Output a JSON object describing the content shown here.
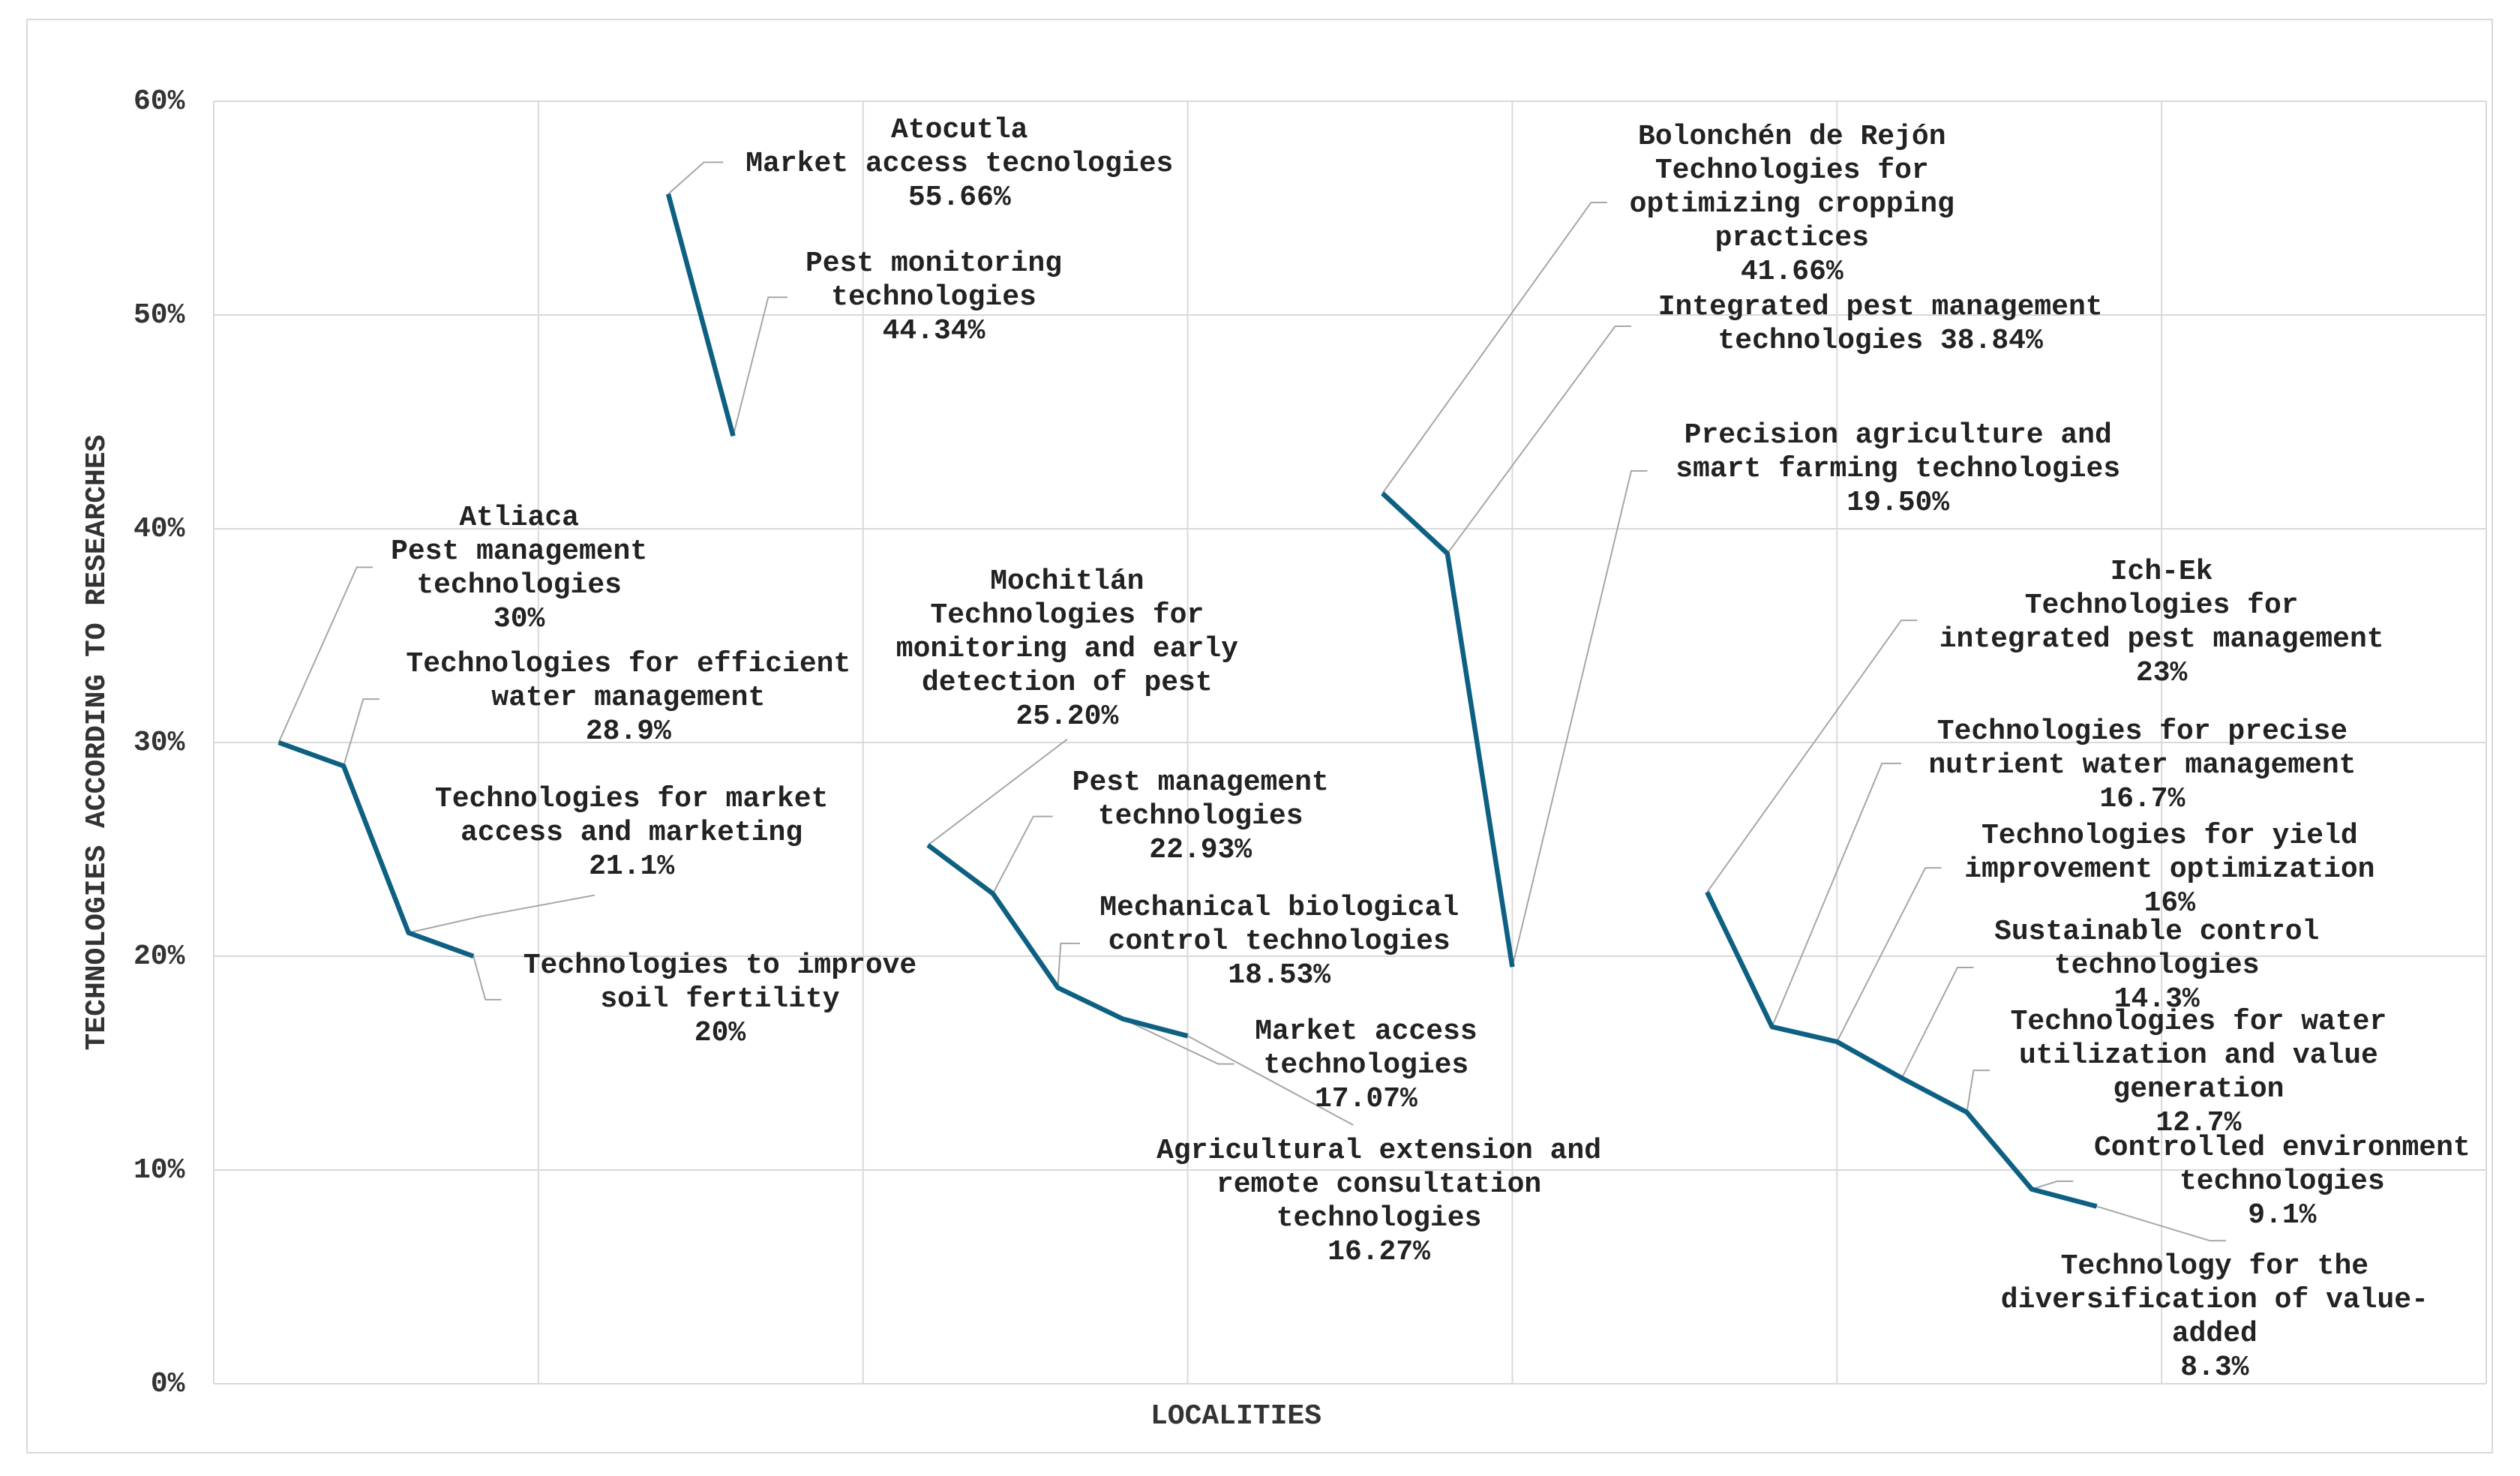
{
  "chart_data": {
    "type": "line",
    "y_label": "TECHNOLOGIES ACCORDING TO RESEARCHES",
    "x_label": "LOCALITIES",
    "categories": [
      null,
      null,
      null,
      null,
      null,
      null,
      null,
      null,
      null,
      null,
      null,
      null,
      null,
      null,
      null,
      null,
      null,
      null,
      null,
      null,
      null,
      null,
      null,
      null,
      null,
      null,
      null,
      null,
      null,
      null,
      null,
      null,
      null,
      null,
      null,
      null
    ],
    "ylim": [
      0,
      60
    ],
    "yticks": [
      {
        "value": 0,
        "label": "0%"
      },
      {
        "value": 10,
        "label": "10%"
      },
      {
        "value": 20,
        "label": "20%"
      },
      {
        "value": 30,
        "label": "30%"
      },
      {
        "value": 40,
        "label": "40%"
      },
      {
        "value": 50,
        "label": "50%"
      },
      {
        "value": 60,
        "label": "60%"
      }
    ],
    "grid": true,
    "series": [
      {
        "name": "Atliaca",
        "color": "#0e6083",
        "values": [
          null,
          30,
          28.9,
          21.1,
          20,
          null,
          null,
          null,
          null,
          null,
          null,
          null,
          null,
          null,
          null,
          null,
          null,
          null,
          null,
          null,
          null,
          null,
          null,
          null,
          null,
          null,
          null,
          null,
          null,
          null,
          null,
          null,
          null,
          null,
          null,
          null
        ],
        "labels": [
          null,
          "Pest management technologies",
          "Technologies for efficient water management",
          "Technologies for market access and marketing",
          "Technologies to improve soil fertility",
          null,
          null,
          null,
          null,
          null,
          null,
          null,
          null,
          null,
          null,
          null,
          null,
          null,
          null,
          null,
          null,
          null,
          null,
          null,
          null,
          null,
          null,
          null,
          null,
          null,
          null,
          null,
          null,
          null,
          null,
          null
        ],
        "value_labels": [
          null,
          "30%",
          "28.9%",
          "21.1%",
          "20%",
          null,
          null,
          null,
          null,
          null,
          null,
          null,
          null,
          null,
          null,
          null,
          null,
          null,
          null,
          null,
          null,
          null,
          null,
          null,
          null,
          null,
          null,
          null,
          null,
          null,
          null,
          null,
          null,
          null,
          null,
          null
        ]
      },
      {
        "name": "Atocutla",
        "color": "#0e6083",
        "values": [
          null,
          null,
          null,
          null,
          null,
          null,
          null,
          55.66,
          44.34,
          null,
          null,
          null,
          null,
          null,
          null,
          null,
          null,
          null,
          null,
          null,
          null,
          null,
          null,
          null,
          null,
          null,
          null,
          null,
          null,
          null,
          null,
          null,
          null,
          null,
          null,
          null
        ],
        "labels": [
          null,
          null,
          null,
          null,
          null,
          null,
          null,
          "Market access tecnologies",
          "Pest monitoring technologies",
          null,
          null,
          null,
          null,
          null,
          null,
          null,
          null,
          null,
          null,
          null,
          null,
          null,
          null,
          null,
          null,
          null,
          null,
          null,
          null,
          null,
          null,
          null,
          null,
          null,
          null,
          null
        ],
        "value_labels": [
          null,
          null,
          null,
          null,
          null,
          null,
          null,
          "55.66%",
          "44.34%",
          null,
          null,
          null,
          null,
          null,
          null,
          null,
          null,
          null,
          null,
          null,
          null,
          null,
          null,
          null,
          null,
          null,
          null,
          null,
          null,
          null,
          null,
          null,
          null,
          null,
          null,
          null
        ]
      },
      {
        "name": "Mochitlán",
        "color": "#0e6083",
        "values": [
          null,
          null,
          null,
          null,
          null,
          null,
          null,
          null,
          null,
          null,
          null,
          25.2,
          22.93,
          18.53,
          17.07,
          16.27,
          null,
          null,
          null,
          null,
          null,
          null,
          null,
          null,
          null,
          null,
          null,
          null,
          null,
          null,
          null,
          null,
          null,
          null,
          null,
          null
        ],
        "labels": [
          null,
          null,
          null,
          null,
          null,
          null,
          null,
          null,
          null,
          null,
          null,
          "Technologies for monitoring and early detection of pest",
          "Pest management technologies",
          "Mechanical biological control technologies",
          "Market access technologies",
          "Agricultural extension and remote consultation technologies",
          null,
          null,
          null,
          null,
          null,
          null,
          null,
          null,
          null,
          null,
          null,
          null,
          null,
          null,
          null,
          null,
          null,
          null,
          null,
          null
        ],
        "value_labels": [
          null,
          null,
          null,
          null,
          null,
          null,
          null,
          null,
          null,
          null,
          null,
          "25.20%",
          "22.93%",
          "18.53%",
          "17.07%",
          "16.27%",
          null,
          null,
          null,
          null,
          null,
          null,
          null,
          null,
          null,
          null,
          null,
          null,
          null,
          null,
          null,
          null,
          null,
          null,
          null,
          null
        ]
      },
      {
        "name": "Bolonchén de Rejón",
        "color": "#0e6083",
        "values": [
          null,
          null,
          null,
          null,
          null,
          null,
          null,
          null,
          null,
          null,
          null,
          null,
          null,
          null,
          null,
          null,
          null,
          null,
          41.66,
          38.84,
          19.5,
          null,
          null,
          null,
          null,
          null,
          null,
          null,
          null,
          null,
          null,
          null,
          null,
          null,
          null,
          null
        ],
        "labels": [
          null,
          null,
          null,
          null,
          null,
          null,
          null,
          null,
          null,
          null,
          null,
          null,
          null,
          null,
          null,
          null,
          null,
          null,
          "Technologies for optimizing cropping practices",
          "Integrated pest management technologies",
          "Precision agriculture and smart farming technologies",
          null,
          null,
          null,
          null,
          null,
          null,
          null,
          null,
          null,
          null,
          null,
          null,
          null,
          null,
          null
        ],
        "value_labels": [
          null,
          null,
          null,
          null,
          null,
          null,
          null,
          null,
          null,
          null,
          null,
          null,
          null,
          null,
          null,
          null,
          null,
          null,
          "41.66%",
          "38.84%",
          "19.50%",
          null,
          null,
          null,
          null,
          null,
          null,
          null,
          null,
          null,
          null,
          null,
          null,
          null,
          null,
          null
        ]
      },
      {
        "name": "Ich-Ek",
        "color": "#0e6083",
        "values": [
          null,
          null,
          null,
          null,
          null,
          null,
          null,
          null,
          null,
          null,
          null,
          null,
          null,
          null,
          null,
          null,
          null,
          null,
          null,
          null,
          null,
          null,
          null,
          23,
          16.7,
          16,
          14.3,
          12.7,
          9.1,
          8.3,
          null,
          null,
          null,
          null,
          null,
          null
        ],
        "labels": [
          null,
          null,
          null,
          null,
          null,
          null,
          null,
          null,
          null,
          null,
          null,
          null,
          null,
          null,
          null,
          null,
          null,
          null,
          null,
          null,
          null,
          null,
          null,
          "Technologies for integrated pest management",
          "Technologies for precise nutrient water management",
          "Technologies for yield improvement optimization",
          "Sustainable control technologies",
          "Technologies for water utilization and value generation",
          "Controlled environment technologies",
          "Technology for the diversification of value-added",
          null,
          null,
          null,
          null,
          null,
          null
        ],
        "value_labels": [
          null,
          null,
          null,
          null,
          null,
          null,
          null,
          null,
          null,
          null,
          null,
          null,
          null,
          null,
          null,
          null,
          null,
          null,
          null,
          null,
          null,
          null,
          null,
          "23%",
          "16.7%",
          "16%",
          "14.3%",
          "12.7%",
          "9.1%",
          "8.3%",
          null,
          null,
          null,
          null,
          null,
          null
        ]
      }
    ]
  }
}
